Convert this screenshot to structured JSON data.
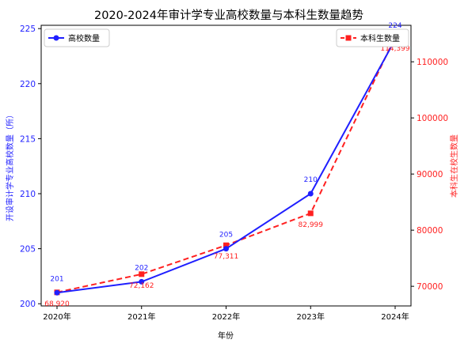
{
  "chart_data": {
    "type": "line",
    "title": "2020-2024年审计学专业高校数量与本科生数量趋势",
    "xlabel": "年份",
    "ylabel_left": "开设审计学专业高校数量（所）",
    "ylabel_right": "本科生在校生数量",
    "categories": [
      "2020年",
      "2021年",
      "2022年",
      "2023年",
      "2024年"
    ],
    "y_left": {
      "lim": [
        199.8,
        225.3
      ],
      "ticks": [
        200,
        205,
        210,
        215,
        220,
        225
      ]
    },
    "y_right": {
      "lim": [
        66500,
        116500
      ],
      "ticks": [
        70000,
        80000,
        90000,
        100000,
        110000
      ]
    },
    "grid": false,
    "series": [
      {
        "name": "高校数量",
        "axis": "left",
        "color": "#1f1fff",
        "line_style": "solid",
        "marker": "circle",
        "values": [
          201,
          202,
          205,
          210,
          224
        ],
        "labels": [
          "201",
          "202",
          "205",
          "210",
          "224"
        ]
      },
      {
        "name": "本科生数量",
        "axis": "right",
        "color": "#ff2020",
        "line_style": "dashed",
        "marker": "square",
        "values": [
          68920,
          72162,
          77311,
          82999,
          114399
        ],
        "labels": [
          "68,920",
          "72,162",
          "77,311",
          "82,999",
          "114,399"
        ]
      }
    ],
    "legend": [
      {
        "series": 0,
        "position": "upper-left"
      },
      {
        "series": 1,
        "position": "upper-right"
      }
    ]
  }
}
